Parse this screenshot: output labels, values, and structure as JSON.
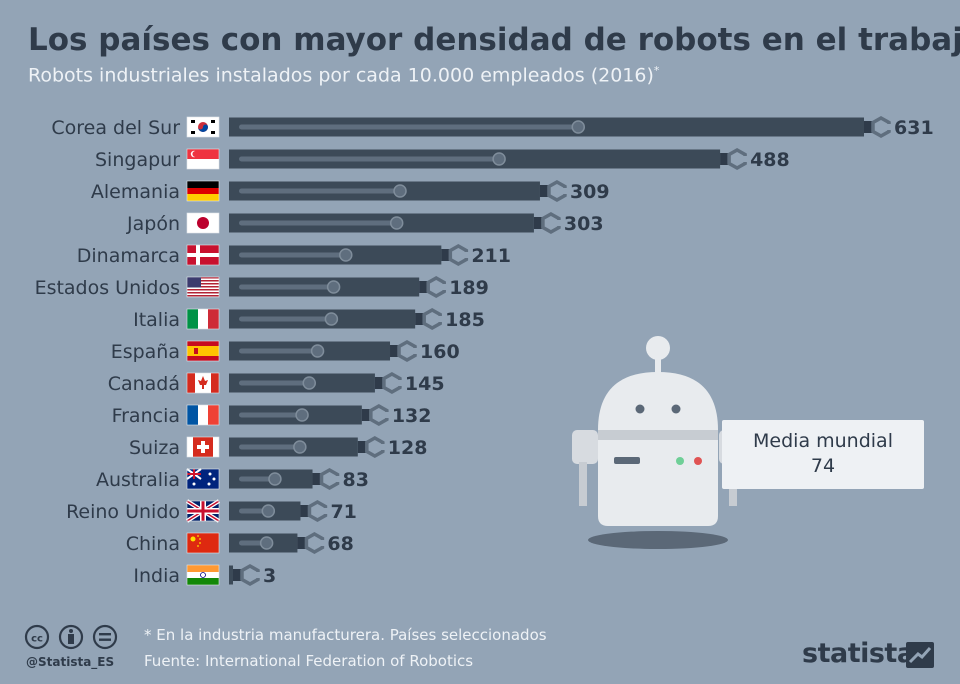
{
  "title": "Los países con mayor densidad de robots en el trabajo",
  "subtitle": "Robots industriales instalados por cada 10.000 empleados (2016)",
  "subtitle_mark": "*",
  "chart_data": {
    "type": "bar",
    "orientation": "horizontal",
    "categories": [
      "Corea del Sur",
      "Singapur",
      "Alemania",
      "Japón",
      "Dinamarca",
      "Estados Unidos",
      "Italia",
      "España",
      "Canadá",
      "Francia",
      "Suiza",
      "Australia",
      "Reino Unido",
      "China",
      "India"
    ],
    "values": [
      631,
      488,
      309,
      303,
      211,
      189,
      185,
      160,
      145,
      132,
      128,
      83,
      71,
      68,
      3
    ],
    "xlim": [
      0,
      631
    ],
    "grid": false,
    "bar_color": "#3c4a58"
  },
  "flags": [
    "south-korea-flag",
    "singapore-flag",
    "germany-flag",
    "japan-flag",
    "denmark-flag",
    "usa-flag",
    "italy-flag",
    "spain-flag",
    "canada-flag",
    "france-flag",
    "switzerland-flag",
    "australia-flag",
    "uk-flag",
    "china-flag",
    "india-flag"
  ],
  "callout": {
    "label": "Media mundial",
    "value": "74"
  },
  "footer": {
    "note": "* En la industria manufacturera. Países seleccionados",
    "source": "Fuente: International Federation of Robotics",
    "handle": "@Statista_ES",
    "brand": "statista"
  }
}
